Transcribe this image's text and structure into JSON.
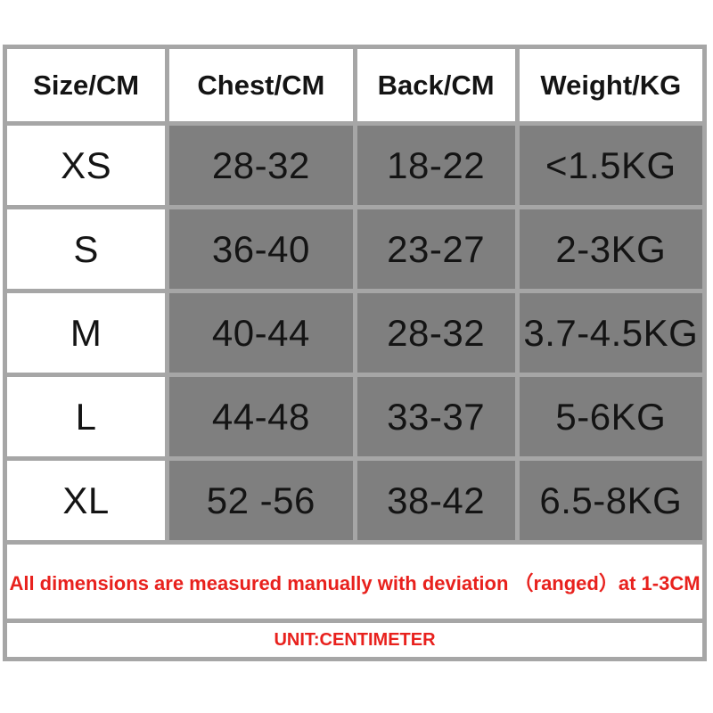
{
  "table": {
    "headers": [
      "Size/CM",
      "Chest/CM",
      "Back/CM",
      "Weight/KG"
    ],
    "rows": [
      {
        "size": "XS",
        "chest": "28-32",
        "back": "18-22",
        "weight": "<1.5KG"
      },
      {
        "size": "S",
        "chest": "36-40",
        "back": "23-27",
        "weight": "2-3KG"
      },
      {
        "size": "M",
        "chest": "40-44",
        "back": "28-32",
        "weight": "3.7-4.5KG"
      },
      {
        "size": "L",
        "chest": "44-48",
        "back": "33-37",
        "weight": "5-6KG"
      },
      {
        "size": "XL",
        "chest": "52 -56",
        "back": "38-42",
        "weight": "6.5-8KG"
      }
    ],
    "note": "All dimensions are measured manually with deviation （ranged）at 1-3CM",
    "unit": "UNIT:CENTIMETER"
  },
  "colors": {
    "cell_gray": "#7f7f7f",
    "grid_border_gray": "#a6a6a6",
    "note_red": "#e8211d",
    "header_bg": "#ffffff",
    "text_black": "#141414"
  }
}
